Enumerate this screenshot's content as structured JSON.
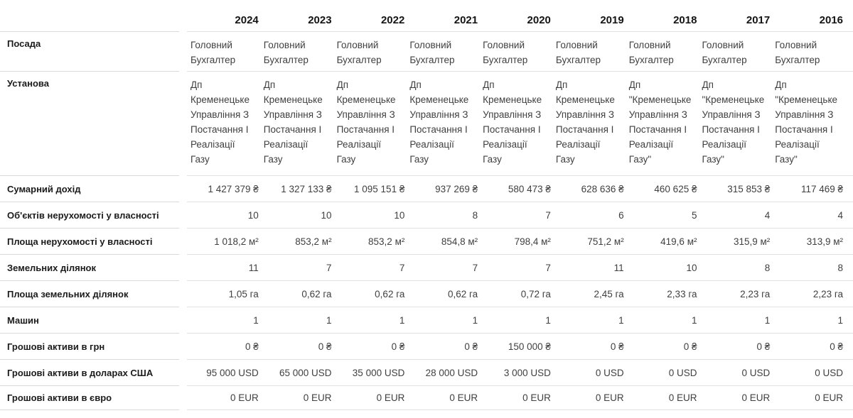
{
  "header": {
    "years": [
      "2024",
      "2023",
      "2022",
      "2021",
      "2020",
      "2019",
      "2018",
      "2017",
      "2016"
    ]
  },
  "rows": [
    {
      "id": "posada",
      "label": "Посада",
      "type": "text",
      "values": [
        "Головний Бухгалтер",
        "Головний Бухгалтер",
        "Головний Бухгалтер",
        "Головний Бухгалтер",
        "Головний Бухгалтер",
        "Головний Бухгалтер",
        "Головний Бухгалтер",
        "Головний Бухгалтер",
        "Головний Бухгалтер"
      ]
    },
    {
      "id": "ustanova",
      "label": "Установа",
      "type": "text",
      "values": [
        "Дп Кременецьке Управління З Постачання І Реалізації Газу",
        "Дп Кременецьке Управління З Постачання І Реалізації Газу",
        "Дп Кременецьке Управління З Постачання І Реалізації Газу",
        "Дп Кременецьке Управління З Постачання І Реалізації Газу",
        "Дп Кременецьке Управління З Постачання І Реалізації Газу",
        "Дп Кременецьке Управління З Постачання І Реалізації Газу",
        "Дп \"Кременецьке Управління З Постачання І Реалізації Газу\"",
        "Дп \"Кременецьке Управління З Постачання І Реалізації Газу\"",
        "Дп \"Кременецьке Управління З Постачання І Реалізації Газу\""
      ]
    },
    {
      "id": "income",
      "label": "Сумарний дохід",
      "type": "number",
      "values": [
        "1 427 379 ₴",
        "1 327 133 ₴",
        "1 095 151 ₴",
        "937 269 ₴",
        "580 473 ₴",
        "628 636 ₴",
        "460 625 ₴",
        "315 853 ₴",
        "117 469 ₴"
      ]
    },
    {
      "id": "property-count",
      "label": "Об'єктів нерухомості у власності",
      "type": "number",
      "values": [
        "10",
        "10",
        "10",
        "8",
        "7",
        "6",
        "5",
        "4",
        "4"
      ]
    },
    {
      "id": "property-area",
      "label": "Площа нерухомості у власності",
      "type": "number",
      "values": [
        "1 018,2 м²",
        "853,2 м²",
        "853,2 м²",
        "854,8 м²",
        "798,4 м²",
        "751,2 м²",
        "419,6 м²",
        "315,9 м²",
        "313,9 м²"
      ]
    },
    {
      "id": "land-count",
      "label": "Земельних ділянок",
      "type": "number",
      "values": [
        "11",
        "7",
        "7",
        "7",
        "7",
        "11",
        "10",
        "8",
        "8"
      ]
    },
    {
      "id": "land-area",
      "label": "Площа земельних ділянок",
      "type": "number",
      "values": [
        "1,05 га",
        "0,62 га",
        "0,62 га",
        "0,62 га",
        "0,72 га",
        "2,45 га",
        "2,33 га",
        "2,23 га",
        "2,23 га"
      ]
    },
    {
      "id": "cars",
      "label": "Машин",
      "type": "number",
      "values": [
        "1",
        "1",
        "1",
        "1",
        "1",
        "1",
        "1",
        "1",
        "1"
      ]
    },
    {
      "id": "cash-uah",
      "label": "Грошові активи в грн",
      "type": "number",
      "values": [
        "0 ₴",
        "0 ₴",
        "0 ₴",
        "0 ₴",
        "150 000 ₴",
        "0 ₴",
        "0 ₴",
        "0 ₴",
        "0 ₴"
      ]
    },
    {
      "id": "cash-usd",
      "label": "Грошові активи в доларах США",
      "type": "number",
      "values": [
        "95 000 USD",
        "65 000 USD",
        "35 000 USD",
        "28 000 USD",
        "3 000 USD",
        "0 USD",
        "0 USD",
        "0 USD",
        "0 USD"
      ]
    },
    {
      "id": "cash-eur",
      "label": "Грошові активи в євро",
      "type": "number",
      "values": [
        "0 EUR",
        "0 EUR",
        "0 EUR",
        "0 EUR",
        "0 EUR",
        "0 EUR",
        "0 EUR",
        "0 EUR",
        "0 EUR"
      ]
    }
  ]
}
